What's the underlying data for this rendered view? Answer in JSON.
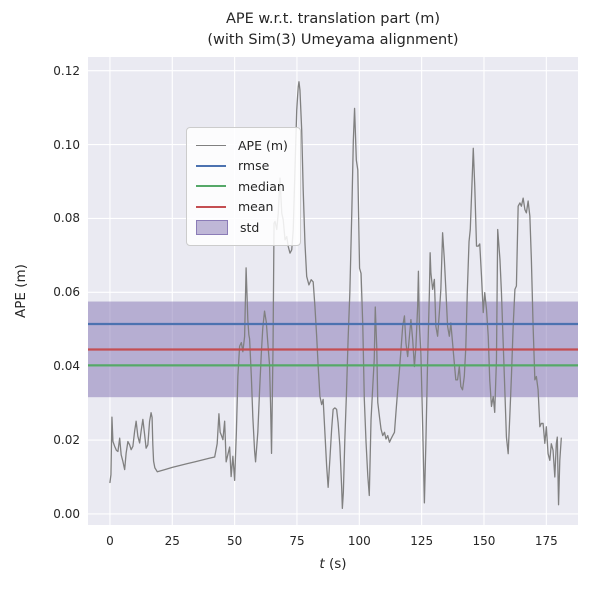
{
  "figure": {
    "title_line1": "APE w.r.t. translation part (m)",
    "title_line2": "(with Sim(3) Umeyama alignment)"
  },
  "axes": {
    "xlabel_italic": "t",
    "xlabel_rest": " (s)",
    "ylabel": "APE (m)"
  },
  "legend": {
    "items": [
      {
        "label": "APE (m)",
        "type": "line",
        "color": "#808080",
        "thickness": 1.8
      },
      {
        "label": "rmse",
        "type": "line",
        "color": "#4c72b0",
        "thickness": 2.6
      },
      {
        "label": "median",
        "type": "line",
        "color": "#55a868",
        "thickness": 2.6
      },
      {
        "label": "mean",
        "type": "line",
        "color": "#c44e52",
        "thickness": 2.6
      },
      {
        "label": "std",
        "type": "patch",
        "color": "rgba(129,114,178,0.5)",
        "edge": "rgba(129,114,178,0.85)"
      }
    ]
  },
  "chart_data": {
    "type": "line",
    "title": "APE w.r.t. translation part (m) (with Sim(3) Umeyama alignment)",
    "xlabel": "t (s)",
    "ylabel": "APE (m)",
    "xlim": [
      -8.8,
      187.7
    ],
    "ylim": [
      -0.003,
      0.1237
    ],
    "x_ticks": [
      0,
      25,
      50,
      75,
      100,
      125,
      150,
      175
    ],
    "y_ticks": [
      0.0,
      0.02,
      0.04,
      0.06,
      0.08,
      0.1,
      0.12
    ],
    "y_tick_labels": [
      "0.00",
      "0.02",
      "0.04",
      "0.06",
      "0.08",
      "0.10",
      "0.12"
    ],
    "grid": true,
    "legend_position": "upper left",
    "colors": {
      "ape": "#808080",
      "rmse": "#4c72b0",
      "median": "#55a868",
      "mean": "#c44e52",
      "std_band": "rgba(129,114,178,0.5)",
      "plot_background": "#eaeaf2",
      "gridline": "#ffffff"
    },
    "stats": {
      "rmse": 0.0514,
      "mean": 0.0445,
      "median": 0.0402,
      "std": 0.013,
      "std_band": [
        0.0316,
        0.0575
      ]
    },
    "series": [
      {
        "name": "APE (m)",
        "points": [
          [
            0,
            0.0085
          ],
          [
            0.4,
            0.0106
          ],
          [
            0.8,
            0.0262
          ],
          [
            1.2,
            0.0196
          ],
          [
            1.9,
            0.0183
          ],
          [
            2.6,
            0.0172
          ],
          [
            3.2,
            0.0169
          ],
          [
            3.9,
            0.0205
          ],
          [
            4.5,
            0.016
          ],
          [
            5.2,
            0.0142
          ],
          [
            5.9,
            0.012
          ],
          [
            6.5,
            0.0165
          ],
          [
            7.2,
            0.0196
          ],
          [
            7.9,
            0.0187
          ],
          [
            8.5,
            0.0174
          ],
          [
            9.2,
            0.0183
          ],
          [
            9.9,
            0.0224
          ],
          [
            10.5,
            0.0251
          ],
          [
            11.2,
            0.021
          ],
          [
            11.9,
            0.0192
          ],
          [
            12.5,
            0.0224
          ],
          [
            13.2,
            0.0256
          ],
          [
            13.9,
            0.0215
          ],
          [
            14.5,
            0.0178
          ],
          [
            15.2,
            0.0187
          ],
          [
            15.9,
            0.0251
          ],
          [
            16.5,
            0.0274
          ],
          [
            16.9,
            0.0261
          ],
          [
            17.2,
            0.0187
          ],
          [
            17.5,
            0.0143
          ],
          [
            18,
            0.0125
          ],
          [
            19,
            0.0114
          ],
          [
            22,
            0.012
          ],
          [
            25,
            0.0126
          ],
          [
            28,
            0.0131
          ],
          [
            31,
            0.0136
          ],
          [
            34,
            0.0141
          ],
          [
            37,
            0.0146
          ],
          [
            40,
            0.0151
          ],
          [
            42,
            0.0154
          ],
          [
            43,
            0.019
          ],
          [
            43.7,
            0.0271
          ],
          [
            44.2,
            0.0221
          ],
          [
            44.8,
            0.0211
          ],
          [
            45.3,
            0.0201
          ],
          [
            46,
            0.0251
          ],
          [
            46.6,
            0.0141
          ],
          [
            47.3,
            0.0161
          ],
          [
            48,
            0.0181
          ],
          [
            48.6,
            0.0101
          ],
          [
            49.3,
            0.0156
          ],
          [
            50,
            0.0091
          ],
          [
            50.7,
            0.0221
          ],
          [
            51.3,
            0.0373
          ],
          [
            52,
            0.0454
          ],
          [
            52.7,
            0.0464
          ],
          [
            53.3,
            0.0439
          ],
          [
            54,
            0.048
          ],
          [
            54.6,
            0.0666
          ],
          [
            55.3,
            0.0525
          ],
          [
            55.7,
            0.0485
          ],
          [
            56,
            0.0474
          ],
          [
            56.7,
            0.0373
          ],
          [
            57.3,
            0.0262
          ],
          [
            58,
            0.0171
          ],
          [
            58.4,
            0.0141
          ],
          [
            59.3,
            0.0221
          ],
          [
            60,
            0.0333
          ],
          [
            60.7,
            0.0434
          ],
          [
            61.3,
            0.0504
          ],
          [
            62,
            0.0549
          ],
          [
            62.7,
            0.0519
          ],
          [
            63.3,
            0.0464
          ],
          [
            64,
            0.0403
          ],
          [
            64.4,
            0.03
          ],
          [
            64.8,
            0.0164
          ],
          [
            65.4,
            0.045
          ],
          [
            65.8,
            0.0787
          ],
          [
            66.2,
            0.0792
          ],
          [
            66.9,
            0.077
          ],
          [
            67.5,
            0.0814
          ],
          [
            68.2,
            0.0909
          ],
          [
            68.9,
            0.0814
          ],
          [
            69.5,
            0.0796
          ],
          [
            70.2,
            0.0742
          ],
          [
            70.9,
            0.0751
          ],
          [
            71.5,
            0.0724
          ],
          [
            72.2,
            0.0706
          ],
          [
            72.9,
            0.0715
          ],
          [
            73.5,
            0.0769
          ],
          [
            74.2,
            0.0931
          ],
          [
            74.9,
            0.1093
          ],
          [
            75.5,
            0.1156
          ],
          [
            75.8,
            0.117
          ],
          [
            76.2,
            0.1147
          ],
          [
            76.9,
            0.1039
          ],
          [
            77.5,
            0.0877
          ],
          [
            78.2,
            0.0733
          ],
          [
            78.9,
            0.0643
          ],
          [
            79.8,
            0.062
          ],
          [
            80.7,
            0.0634
          ],
          [
            81.5,
            0.0628
          ],
          [
            82.2,
            0.0562
          ],
          [
            82.9,
            0.0481
          ],
          [
            83.5,
            0.04
          ],
          [
            84.2,
            0.0319
          ],
          [
            84.9,
            0.0296
          ],
          [
            85.5,
            0.031
          ],
          [
            86.2,
            0.022
          ],
          [
            86.9,
            0.013
          ],
          [
            87.5,
            0.0072
          ],
          [
            88.2,
            0.0148
          ],
          [
            88.9,
            0.0229
          ],
          [
            89.5,
            0.0283
          ],
          [
            90.2,
            0.0287
          ],
          [
            90.9,
            0.0283
          ],
          [
            91.5,
            0.0247
          ],
          [
            92.2,
            0.0184
          ],
          [
            92.9,
            0.0076
          ],
          [
            93.2,
            0.0015
          ],
          [
            93.6,
            0.0058
          ],
          [
            94.2,
            0.0202
          ],
          [
            94.9,
            0.0337
          ],
          [
            95.5,
            0.0472
          ],
          [
            96.2,
            0.0598
          ],
          [
            97,
            0.082
          ],
          [
            97.6,
            0.101
          ],
          [
            98.1,
            0.1098
          ],
          [
            98.8,
            0.0958
          ],
          [
            99.4,
            0.0931
          ],
          [
            100.1,
            0.0665
          ],
          [
            100.7,
            0.0651
          ],
          [
            101.4,
            0.0509
          ],
          [
            102,
            0.0311
          ],
          [
            102.7,
            0.0194
          ],
          [
            103.4,
            0.0103
          ],
          [
            104,
            0.005
          ],
          [
            104.7,
            0.0255
          ],
          [
            105.4,
            0.0345
          ],
          [
            106,
            0.042
          ],
          [
            106.4,
            0.056
          ],
          [
            107,
            0.045
          ],
          [
            107.4,
            0.0302
          ],
          [
            108.1,
            0.0262
          ],
          [
            108.7,
            0.023
          ],
          [
            109.4,
            0.0212
          ],
          [
            110.1,
            0.0221
          ],
          [
            110.7,
            0.0203
          ],
          [
            111.4,
            0.0212
          ],
          [
            112.1,
            0.0194
          ],
          [
            112.7,
            0.0203
          ],
          [
            113.4,
            0.0212
          ],
          [
            114.1,
            0.0221
          ],
          [
            114.7,
            0.0275
          ],
          [
            115.4,
            0.0336
          ],
          [
            116.1,
            0.039
          ],
          [
            116.7,
            0.0444
          ],
          [
            117.4,
            0.0508
          ],
          [
            118.1,
            0.0536
          ],
          [
            118.7,
            0.0463
          ],
          [
            119.4,
            0.0426
          ],
          [
            120.1,
            0.0481
          ],
          [
            120.7,
            0.0526
          ],
          [
            121.4,
            0.0472
          ],
          [
            122.1,
            0.0399
          ],
          [
            122.7,
            0.0453
          ],
          [
            123.4,
            0.0563
          ],
          [
            123.7,
            0.0657
          ],
          [
            124.1,
            0.0508
          ],
          [
            124.7,
            0.0435
          ],
          [
            125.4,
            0.0239
          ],
          [
            126.1,
            0.003
          ],
          [
            126.7,
            0.0194
          ],
          [
            127.4,
            0.0417
          ],
          [
            128.1,
            0.0599
          ],
          [
            128.4,
            0.0707
          ],
          [
            128.7,
            0.0653
          ],
          [
            129.4,
            0.0608
          ],
          [
            130.1,
            0.0635
          ],
          [
            130.7,
            0.0508
          ],
          [
            131.4,
            0.0481
          ],
          [
            132.1,
            0.0545
          ],
          [
            132.7,
            0.0608
          ],
          [
            133.4,
            0.0761
          ],
          [
            134.1,
            0.0689
          ],
          [
            134.7,
            0.0608
          ],
          [
            135.4,
            0.0508
          ],
          [
            136.1,
            0.0481
          ],
          [
            136.7,
            0.0517
          ],
          [
            137.4,
            0.0463
          ],
          [
            138.1,
            0.0408
          ],
          [
            138.7,
            0.0363
          ],
          [
            139.4,
            0.0363
          ],
          [
            140.1,
            0.0399
          ],
          [
            140.7,
            0.0345
          ],
          [
            141.4,
            0.0336
          ],
          [
            142.1,
            0.0372
          ],
          [
            142.7,
            0.045
          ],
          [
            143.3,
            0.06
          ],
          [
            144,
            0.0737
          ],
          [
            144.5,
            0.077
          ],
          [
            145,
            0.086
          ],
          [
            145.7,
            0.099
          ],
          [
            146.3,
            0.0887
          ],
          [
            147,
            0.0725
          ],
          [
            147.7,
            0.0725
          ],
          [
            148.3,
            0.0731
          ],
          [
            149,
            0.0644
          ],
          [
            149.7,
            0.0545
          ],
          [
            150.3,
            0.0599
          ],
          [
            151,
            0.0554
          ],
          [
            151.7,
            0.0481
          ],
          [
            152.3,
            0.0363
          ],
          [
            153,
            0.0291
          ],
          [
            153.7,
            0.0318
          ],
          [
            154.3,
            0.0275
          ],
          [
            155,
            0.0417
          ],
          [
            155.5,
            0.077
          ],
          [
            156,
            0.0725
          ],
          [
            156.4,
            0.0689
          ],
          [
            157,
            0.0599
          ],
          [
            157.7,
            0.0463
          ],
          [
            158.4,
            0.0326
          ],
          [
            159,
            0.0208
          ],
          [
            159.7,
            0.0163
          ],
          [
            160.4,
            0.0272
          ],
          [
            161,
            0.0372
          ],
          [
            161.7,
            0.0508
          ],
          [
            162.4,
            0.0608
          ],
          [
            163,
            0.0617
          ],
          [
            163.7,
            0.0833
          ],
          [
            164.4,
            0.0842
          ],
          [
            165,
            0.0833
          ],
          [
            165.7,
            0.0855
          ],
          [
            166.4,
            0.0824
          ],
          [
            167,
            0.0815
          ],
          [
            167.7,
            0.0847
          ],
          [
            168.4,
            0.0806
          ],
          [
            169,
            0.0689
          ],
          [
            169.7,
            0.0508
          ],
          [
            170.4,
            0.0363
          ],
          [
            171,
            0.0372
          ],
          [
            171.7,
            0.0336
          ],
          [
            172.4,
            0.0236
          ],
          [
            173,
            0.0245
          ],
          [
            173.7,
            0.0245
          ],
          [
            174.4,
            0.0191
          ],
          [
            175,
            0.0236
          ],
          [
            175.7,
            0.0163
          ],
          [
            176.4,
            0.0145
          ],
          [
            177,
            0.019
          ],
          [
            177.7,
            0.0172
          ],
          [
            178.4,
            0.01
          ],
          [
            179,
            0.019
          ],
          [
            179.4,
            0.0208
          ],
          [
            179.9,
            0.0025
          ],
          [
            180.4,
            0.0145
          ],
          [
            181,
            0.0205
          ]
        ]
      }
    ]
  }
}
